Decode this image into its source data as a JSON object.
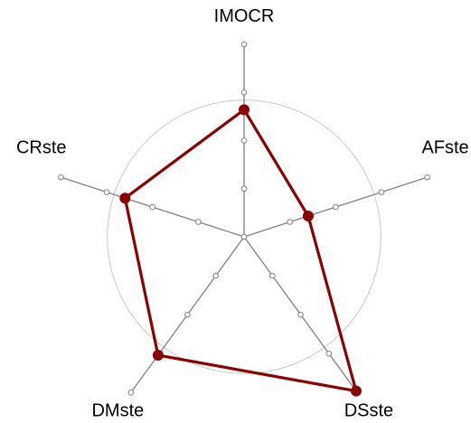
{
  "chart_data": {
    "type": "radar",
    "axes": [
      "IMOCR",
      "AFste",
      "DSste",
      "DMste",
      "CRste"
    ],
    "series": [
      {
        "values": [
          0.66,
          0.35,
          0.99,
          0.76,
          0.65
        ]
      }
    ],
    "range": [
      0,
      1
    ],
    "ticks": [
      0.25,
      0.5,
      0.75,
      1.0
    ],
    "reference_circle": 0.71,
    "line_color": "#8B0000",
    "point_color": "#8B0000",
    "axis_color": "#808080",
    "circle_color": "#c8c8c8",
    "grid": false,
    "legend": "none"
  }
}
